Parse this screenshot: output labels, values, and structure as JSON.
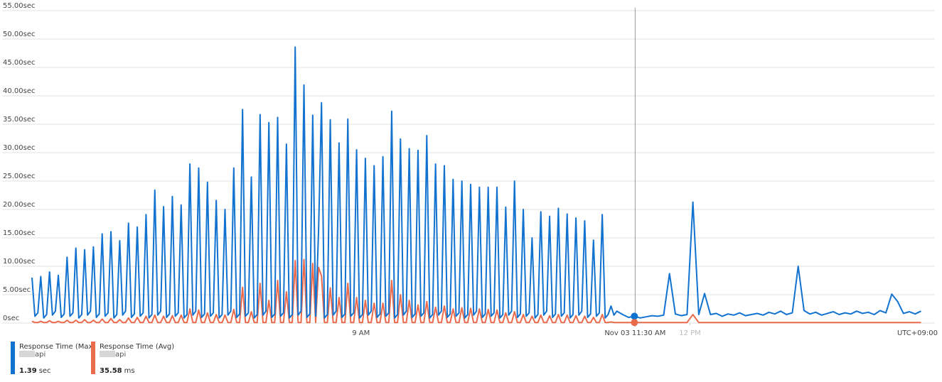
{
  "chart_data": {
    "type": "line",
    "xlim": [
      360,
      854
    ],
    "ylim": [
      0,
      55
    ],
    "yticks": [
      {
        "value": 0,
        "label": "0sec"
      },
      {
        "value": 5,
        "label": "5.00sec"
      },
      {
        "value": 10,
        "label": "10.00sec"
      },
      {
        "value": 15,
        "label": "15.00sec"
      },
      {
        "value": 20,
        "label": "20.00sec"
      },
      {
        "value": 25,
        "label": "25.00sec"
      },
      {
        "value": 30,
        "label": "30.00sec"
      },
      {
        "value": 35,
        "label": "35.00sec"
      },
      {
        "value": 40,
        "label": "40.00sec"
      },
      {
        "value": 45,
        "label": "45.00sec"
      },
      {
        "value": 50,
        "label": "50.00sec"
      },
      {
        "value": 55,
        "label": "55.00sec"
      }
    ],
    "xticks": [
      {
        "value": 540,
        "label": "9 AM"
      },
      {
        "value": 720,
        "label": "12 PM"
      }
    ],
    "timezone": "UTC+09:00",
    "cursor": {
      "x": 690,
      "label": "Nov 03 11:30 AM"
    },
    "grid": true,
    "x": [
      360,
      361.6,
      363.2,
      364.8,
      366.4,
      368,
      369.6,
      371.2,
      372.8,
      374.4,
      376,
      377.6,
      379.2,
      380.8,
      382.4,
      384,
      385.6,
      387.2,
      388.8,
      390.4,
      392,
      393.6,
      395.2,
      396.8,
      398.4,
      400,
      401.6,
      403.2,
      404.8,
      406.4,
      408,
      409.6,
      411.2,
      412.8,
      414.4,
      416,
      417.6,
      419.2,
      420.8,
      422.4,
      424,
      425.6,
      427.2,
      428.8,
      430.4,
      432,
      433.6,
      435.2,
      436.8,
      438.4,
      440,
      441.6,
      443.2,
      444.8,
      446.4,
      448,
      449.6,
      451.2,
      452.8,
      454.4,
      456,
      457.6,
      459.2,
      460.8,
      462.4,
      464,
      465.6,
      467.2,
      468.8,
      470.4,
      472,
      473.6,
      475.2,
      476.8,
      478.4,
      480,
      481.6,
      483.2,
      484.8,
      486.4,
      488,
      489.6,
      491.2,
      492.8,
      494.4,
      496,
      497.6,
      499.2,
      500.8,
      502.4,
      504,
      505.6,
      507.2,
      508.8,
      510.4,
      512,
      513.6,
      515.2,
      516.8,
      518.4,
      520,
      521.6,
      523.2,
      524.8,
      526.4,
      528,
      529.6,
      531.2,
      532.8,
      534.4,
      536,
      537.6,
      539.2,
      540.8,
      542.4,
      544,
      545.6,
      547.2,
      548.8,
      550.4,
      552,
      553.6,
      555.2,
      556.8,
      558.4,
      560,
      561.6,
      563.2,
      564.8,
      566.4,
      568,
      569.6,
      571.2,
      572.8,
      574.4,
      576,
      577.6,
      579.2,
      580.8,
      582.4,
      584,
      585.6,
      587.2,
      588.8,
      590.4,
      592,
      593.6,
      595.2,
      596.8,
      598.4,
      600,
      601.6,
      603.2,
      604.8,
      606.4,
      608,
      609.6,
      611.2,
      612.8,
      614.4,
      616,
      617.6,
      619.2,
      620.8,
      622.4,
      624,
      625.6,
      627.2,
      628.8,
      630.4,
      632,
      633.6,
      635.2,
      636.8,
      638.4,
      640,
      641.6,
      643.2,
      644.8,
      646.4,
      648,
      649.6,
      651.2,
      652.8,
      654.4,
      656,
      657.6,
      659.2,
      660.8,
      662.4,
      664,
      665.6,
      667.2,
      668.8,
      670.4,
      672,
      673.6,
      675.2,
      676.8,
      678.4,
      680,
      683.2,
      686.4,
      689.6,
      692.8,
      696,
      699.2,
      702.4,
      705.6,
      708.8,
      712,
      715.2,
      718.4,
      721.6,
      724.8,
      728,
      731.2,
      734.4,
      737.6,
      740.8,
      744,
      747.2,
      750.4,
      753.6,
      756.8,
      760,
      763.2,
      766.4,
      769.6,
      772.8,
      776,
      779.2,
      782.4,
      785.6,
      788.8,
      792,
      795.2,
      798.4,
      801.6,
      804.8,
      808,
      811.2,
      814.4,
      817.6,
      820.8,
      824,
      827.2,
      830.4,
      833.6,
      836.8,
      840,
      843.2,
      846.4
    ],
    "series": [
      {
        "name": "Response Time (Max)",
        "resource": "api",
        "summary": 1.39,
        "summary_unit": "sec",
        "color": "#1272d0",
        "values": [
          8,
          1.2,
          1.8,
          8.2,
          0.9,
          1.5,
          9,
          1.4,
          2.1,
          8.4,
          1.0,
          1.6,
          11.6,
          1.2,
          1.8,
          13.2,
          0.9,
          1.5,
          12.9,
          1.4,
          2.1,
          13.4,
          1.0,
          1.6,
          15.7,
          1.2,
          1.8,
          16.1,
          0.9,
          1.5,
          14.5,
          1.4,
          2.1,
          17.6,
          1.0,
          1.6,
          16.9,
          1.2,
          1.8,
          19.1,
          0.9,
          1.5,
          23.4,
          1.4,
          2.1,
          20.5,
          1.0,
          1.6,
          22.3,
          1.2,
          1.8,
          20.8,
          0.9,
          1.5,
          28,
          1.4,
          2.1,
          27.3,
          1.0,
          1.6,
          24.8,
          1.2,
          1.8,
          21.6,
          0.9,
          1.5,
          20,
          1.4,
          2.1,
          27.3,
          1.0,
          1.6,
          37.6,
          1.2,
          1.8,
          25.7,
          0.9,
          1.5,
          36.7,
          1.4,
          2.1,
          35.3,
          1.0,
          1.6,
          36.2,
          1.2,
          1.8,
          31.5,
          0.9,
          1.5,
          48.6,
          1.4,
          2.1,
          41.9,
          1.0,
          1.6,
          36.6,
          1.2,
          16.3,
          38.8,
          0.9,
          1.5,
          35.8,
          1.4,
          2.1,
          31.7,
          1.0,
          1.6,
          35.9,
          1.2,
          1.8,
          30.5,
          0.9,
          1.5,
          29,
          1.4,
          2.1,
          27.7,
          1.0,
          1.6,
          29.3,
          1.2,
          1.8,
          37.3,
          0.9,
          1.5,
          32.4,
          1.4,
          2.1,
          30.7,
          1.0,
          1.6,
          30.4,
          1.2,
          1.8,
          33,
          0.9,
          1.5,
          28,
          1.4,
          2.1,
          27.7,
          1.0,
          1.6,
          25.3,
          1.2,
          1.8,
          25,
          0.9,
          1.5,
          24.4,
          1.4,
          2.1,
          23.9,
          1.0,
          1.6,
          23.9,
          1.2,
          1.8,
          23.9,
          0.9,
          1.5,
          20.4,
          1.4,
          2.1,
          25,
          1.0,
          1.6,
          20,
          1.2,
          1.8,
          15,
          0.9,
          1.5,
          19.6,
          1.4,
          2.1,
          18.8,
          1.0,
          1.6,
          20.2,
          1.2,
          1.8,
          19.2,
          0.9,
          1.5,
          18.5,
          1.4,
          2.1,
          18,
          1.0,
          1.6,
          14.6,
          1.2,
          1.8,
          19.1,
          0.9,
          1.5,
          3,
          1.4,
          2.1,
          1.5,
          1.0,
          1.2,
          0.9,
          1.1,
          1.3,
          1.2,
          1.4,
          8.7,
          1.6,
          1.3,
          1.5,
          21.3,
          1.5,
          5.2,
          1.5,
          1.7,
          1.2,
          1.6,
          1.4,
          1.8,
          1.3,
          1.5,
          1.7,
          1.4,
          1.9,
          1.6,
          2.1,
          1.5,
          1.8,
          10.0,
          2.2,
          1.6,
          1.9,
          1.4,
          1.7,
          2.0,
          1.5,
          1.8,
          1.6,
          2.1,
          1.7,
          1.9,
          1.5,
          2.2,
          1.8,
          5.1,
          3.8,
          1.7,
          2.0,
          1.6,
          2.1
        ]
      },
      {
        "name": "Response Time (Avg)",
        "resource": "api",
        "summary": 35.58,
        "summary_unit": "ms",
        "color": "#ea6a4c",
        "values": [
          0.3,
          0.1,
          0.1,
          0.3,
          0.1,
          0.1,
          0.4,
          0.1,
          0.1,
          0.3,
          0.1,
          0.1,
          0.5,
          0.1,
          0.1,
          0.5,
          0.1,
          0.1,
          0.6,
          0.1,
          0.1,
          0.5,
          0.1,
          0.1,
          0.7,
          0.1,
          0.1,
          0.8,
          0.1,
          0.1,
          0.6,
          0.1,
          0.1,
          0.9,
          0.1,
          0.1,
          1,
          0.1,
          0.1,
          1.2,
          0.1,
          0.1,
          1.4,
          0.1,
          0.1,
          1.2,
          0.1,
          0.1,
          1.3,
          0.1,
          0.1,
          1.4,
          0.1,
          0.1,
          2.5,
          0.1,
          0.1,
          2.3,
          0.1,
          0.1,
          1.8,
          0.1,
          0.1,
          1.5,
          0.1,
          0.1,
          1.4,
          0.1,
          0.1,
          2.4,
          0.1,
          0.1,
          6.3,
          0.1,
          0.1,
          2,
          0.1,
          0.1,
          7,
          0.1,
          0.1,
          4,
          0.1,
          0.1,
          7.5,
          0.1,
          0.1,
          5.5,
          0.1,
          0.1,
          11,
          0.1,
          0.1,
          11.2,
          0.1,
          0.1,
          10.5,
          0.1,
          9.8,
          8.3,
          0.1,
          0.1,
          6.2,
          0.1,
          0.1,
          4.5,
          0.1,
          0.1,
          7,
          0.1,
          0.1,
          4.5,
          0.1,
          0.1,
          4,
          0.1,
          0.1,
          3.5,
          0.1,
          0.1,
          3.5,
          0.1,
          0.1,
          7.5,
          0.1,
          0.1,
          5,
          0.1,
          0.1,
          4,
          0.1,
          0.1,
          3.2,
          0.1,
          0.1,
          3.8,
          0.1,
          0.1,
          2.8,
          0.1,
          0.1,
          3,
          0.1,
          0.1,
          2.5,
          0.1,
          0.1,
          2.7,
          0.1,
          0.1,
          2.6,
          0.1,
          0.1,
          2.5,
          0.1,
          0.1,
          2.4,
          0.1,
          0.1,
          2.3,
          0.1,
          0.1,
          1.8,
          0.1,
          0.1,
          2,
          0.1,
          0.1,
          1.5,
          0.1,
          0.1,
          1.2,
          0.1,
          0.1,
          1.4,
          0.1,
          0.1,
          1.3,
          0.1,
          0.1,
          1.5,
          0.1,
          0.1,
          1.4,
          0.1,
          0.1,
          1.3,
          0.1,
          0.1,
          1.2,
          0.1,
          0.1,
          1,
          0.1,
          0.1,
          1.5,
          0.1,
          0.1,
          0.2,
          0.1,
          0.1,
          0.1,
          0.1,
          0.1,
          0.1,
          0.1,
          0.1,
          0.1,
          0.1,
          0.1,
          0.1,
          0.1,
          0.1,
          1.5,
          0.1,
          0.1,
          0.1,
          0.1,
          0.1,
          0.1,
          0.1,
          0.1,
          0.1,
          0.1,
          0.1,
          0.1,
          0.1,
          0.1,
          0.1,
          0.1,
          0.1,
          0.1,
          0.1,
          0.1,
          0.1,
          0.1,
          0.1,
          0.1,
          0.1,
          0.1,
          0.1,
          0.1,
          0.1,
          0.1,
          0.1,
          0.1,
          0.1,
          0.1,
          0.1,
          0.1,
          0.1,
          0.1,
          0.1
        ]
      }
    ]
  }
}
